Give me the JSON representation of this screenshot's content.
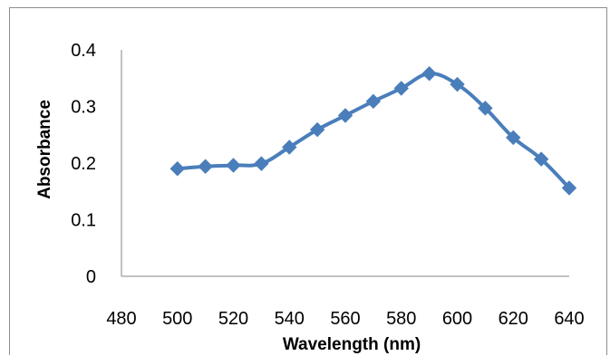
{
  "chart_data": {
    "type": "line",
    "title": "",
    "xlabel": "Wavelength (nm)",
    "ylabel": "Absorbance",
    "xlim": [
      480,
      640
    ],
    "ylim": [
      0,
      0.4
    ],
    "x_ticks": [
      480,
      500,
      520,
      540,
      560,
      580,
      600,
      620,
      640
    ],
    "y_ticks": [
      0,
      0.1,
      0.2,
      0.3,
      0.4
    ],
    "grid": false,
    "legend": "none",
    "series": [
      {
        "color": "#4a7ebb",
        "marker": "diamond",
        "smooth": true,
        "x": [
          500,
          510,
          520,
          530,
          540,
          550,
          560,
          570,
          580,
          590,
          600,
          610,
          620,
          630,
          640
        ],
        "y": [
          0.19,
          0.194,
          0.196,
          0.199,
          0.228,
          0.259,
          0.284,
          0.309,
          0.332,
          0.358,
          0.339,
          0.297,
          0.245,
          0.207,
          0.156
        ]
      }
    ]
  }
}
